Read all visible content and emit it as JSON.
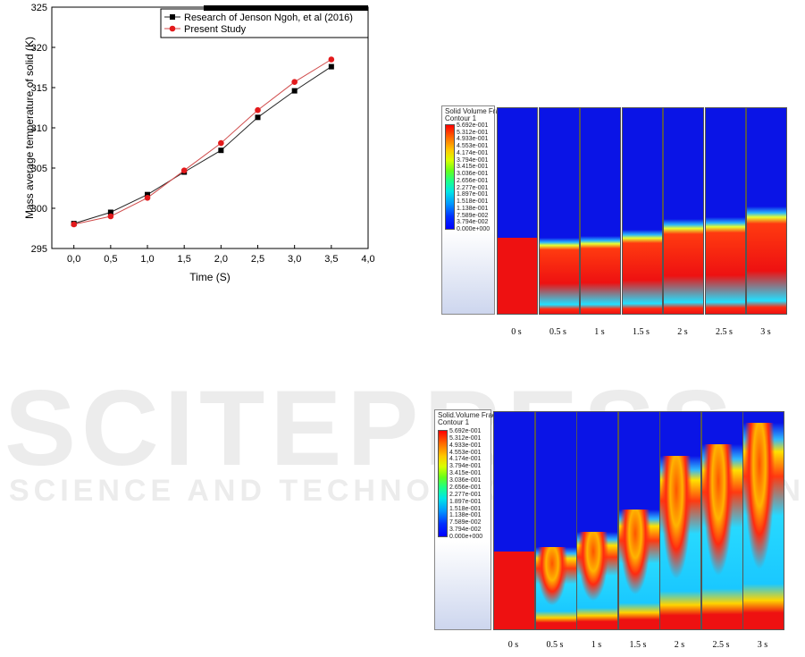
{
  "chart_data": {
    "type": "line",
    "title": "",
    "xlabel": "Time (S)",
    "ylabel": "Mass average temperature of solid (K)",
    "xlim": [
      -0.3,
      4.0
    ],
    "ylim": [
      295,
      325
    ],
    "x_ticks": [
      "0,0",
      "0,5",
      "1,0",
      "1,5",
      "2,0",
      "2,5",
      "3,0",
      "3,5",
      "4,0"
    ],
    "x_tick_values": [
      0,
      0.5,
      1,
      1.5,
      2,
      2.5,
      3,
      3.5,
      4
    ],
    "y_ticks": [
      "295",
      "300",
      "305",
      "310",
      "315",
      "320",
      "325"
    ],
    "y_tick_values": [
      295,
      300,
      305,
      310,
      315,
      320,
      325
    ],
    "legend_position": "top-right",
    "grid": false,
    "series": [
      {
        "name": "Research of Jenson Ngoh, et al (2016)",
        "marker": "square",
        "color": "#000000",
        "x": [
          0,
          0.5,
          1,
          1.5,
          2,
          2.5,
          3,
          3.5
        ],
        "values": [
          298.1,
          299.5,
          301.7,
          304.5,
          307.2,
          311.3,
          314.6,
          317.6
        ]
      },
      {
        "name": "Present Study",
        "marker": "circle",
        "color": "#e31a1c",
        "x": [
          0,
          0.5,
          1,
          1.5,
          2,
          2.5,
          3,
          3.5
        ],
        "values": [
          298.0,
          299.0,
          301.3,
          304.7,
          308.1,
          312.2,
          315.7,
          318.5
        ]
      }
    ]
  },
  "contour_panels": [
    {
      "id": "top",
      "legend_title": "Solid Volume Fraction",
      "legend_subtitle": "Contour 1",
      "scale": [
        "5.692e-001",
        "5.312e-001",
        "4.933e-001",
        "4.553e-001",
        "4.174e-001",
        "3.794e-001",
        "3.415e-001",
        "3.036e-001",
        "2.656e-001",
        "2.277e-001",
        "1.897e-001",
        "1.518e-001",
        "1.138e-001",
        "7.589e-002",
        "3.794e-002",
        "0.000e+000"
      ],
      "times": [
        "0 s",
        "0.5 s",
        "1 s",
        "1.5 s",
        "2 s",
        "2.5 s",
        "3 s"
      ],
      "bed_fill": [
        0.37,
        0.37,
        0.38,
        0.41,
        0.46,
        0.47,
        0.52
      ]
    },
    {
      "id": "bottom",
      "legend_title": "Solid.Volume Fraction",
      "legend_subtitle": "Contour 1",
      "scale": [
        "5.692e-001",
        "5.312e-001",
        "4.933e-001",
        "4.553e-001",
        "4.174e-001",
        "3.794e-001",
        "3.415e-001",
        "3.036e-001",
        "2.656e-001",
        "2.277e-001",
        "1.897e-001",
        "1.518e-001",
        "1.138e-001",
        "7.589e-002",
        "3.794e-002",
        "0.000e+000"
      ],
      "times": [
        "0 s",
        "0.5 s",
        "1 s",
        "1.5 s",
        "2 s",
        "2.5 s",
        "3 s"
      ],
      "bed_fill": [
        0.36,
        0.38,
        0.45,
        0.55,
        0.8,
        0.85,
        0.95
      ]
    }
  ],
  "watermark": {
    "line1": "SCITEPRESS",
    "line2": "SCIENCE AND TECHNOLOGY PUBLICATIONS"
  }
}
